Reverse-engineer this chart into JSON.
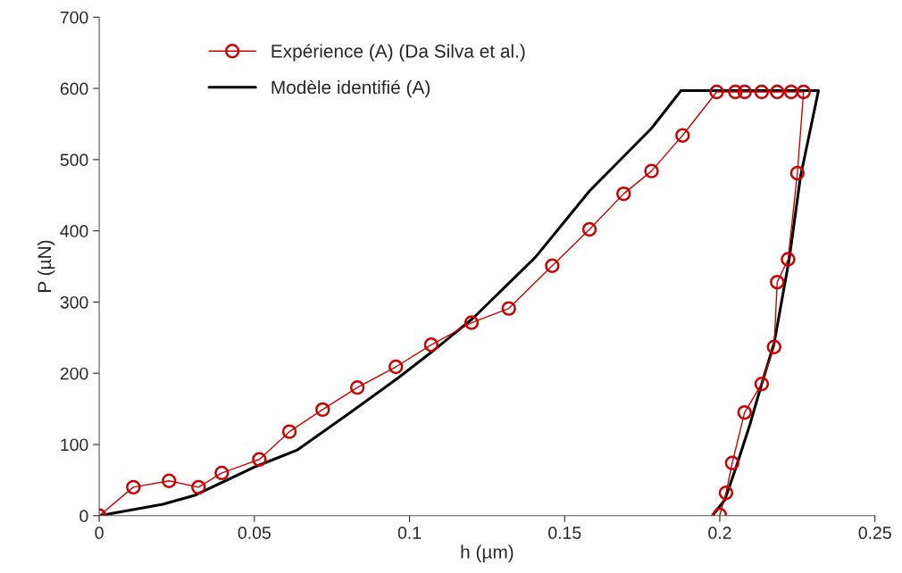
{
  "chart_data": {
    "type": "line",
    "xlabel": "h (µm)",
    "ylabel": "P (µN)",
    "xlim": [
      0,
      0.25
    ],
    "xticks": [
      0,
      0.05,
      0.1,
      0.15,
      0.2,
      0.25
    ],
    "ylim": [
      0,
      700
    ],
    "yticks": [
      0,
      100,
      200,
      300,
      400,
      500,
      600,
      700
    ],
    "grid": false,
    "legend": "top left",
    "series": [
      {
        "name": "Expérience (A) (Da Silva et al.)",
        "color": "#cc0000",
        "marker": "circle",
        "x": [
          0,
          0.011,
          0.0225,
          0.032,
          0.0395,
          0.0516,
          0.0613,
          0.072,
          0.0832,
          0.0956,
          0.107,
          0.12,
          0.132,
          0.146,
          0.158,
          0.169,
          0.178,
          0.188,
          0.199,
          0.205,
          0.208,
          0.2135,
          0.2185,
          0.223,
          0.227,
          0.225,
          0.222,
          0.2185,
          0.2175,
          0.2135,
          0.208,
          0.204,
          0.202,
          0.2
        ],
        "values": [
          0,
          40,
          49,
          40,
          60,
          79,
          118,
          149,
          180,
          209,
          240,
          271,
          291,
          351,
          402,
          452,
          484,
          534,
          595,
          595,
          595,
          595,
          595,
          595,
          595,
          481,
          360,
          328,
          237,
          185,
          145,
          74,
          32,
          1
        ]
      },
      {
        "name": "Modèle identifié (A)",
        "color": "#000000",
        "marker": "none",
        "x": [
          0,
          0.0205,
          0.031,
          0.0504,
          0.0637,
          0.081,
          0.0965,
          0.1069,
          0.1204,
          0.1406,
          0.158,
          0.178,
          0.1875,
          0.2318,
          0.226,
          0.2224,
          0.2175,
          0.2135,
          0.2097,
          0.2054,
          0.2016,
          0.1976
        ],
        "values": [
          0,
          16,
          29,
          69,
          92,
          145,
          194,
          229,
          277,
          363,
          456,
          544,
          597,
          597,
          476,
          361,
          242,
          185,
          128,
          70,
          22,
          0
        ]
      }
    ]
  }
}
